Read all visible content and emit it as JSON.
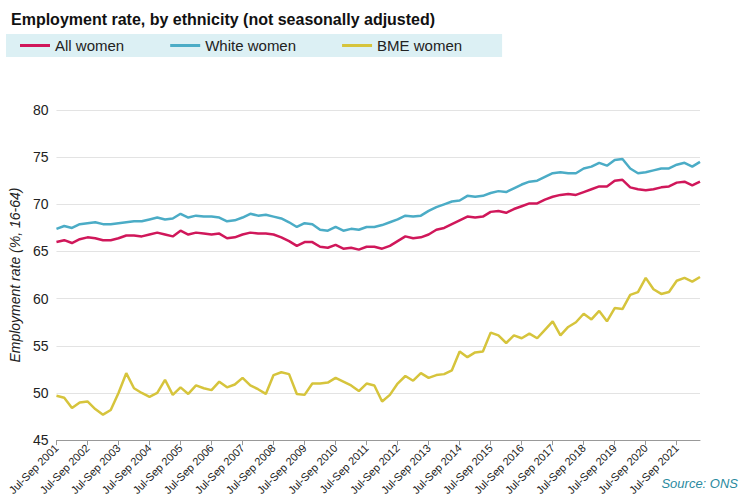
{
  "chart_data": {
    "type": "line",
    "title": "Employment rate, by ethnicity (not seasonally adjusted)",
    "y_label": "Employment rate (%, 16-64)",
    "source": "Source: ONS",
    "categories": [
      "Jul-Sep 2001",
      null,
      null,
      null,
      "Jul-Sep 2002",
      null,
      null,
      null,
      "Jul-Sep 2003",
      null,
      null,
      null,
      "Jul-Sep 2004",
      null,
      null,
      null,
      "Jul-Sep 2005",
      null,
      null,
      null,
      "Jul-Sep 2006",
      null,
      null,
      null,
      "Jul-Sep 2007",
      null,
      null,
      null,
      "Jul-Sep 2008",
      null,
      null,
      null,
      "Jul-Sep 2009",
      null,
      null,
      null,
      "Jul-Sep 2010",
      null,
      null,
      null,
      "Jul-Sep 2011",
      null,
      null,
      null,
      "Jul-Sep 2012",
      null,
      null,
      null,
      "Jul-Sep 2013",
      null,
      null,
      null,
      "Jul-Sep 2014",
      null,
      null,
      null,
      "Jul-Sep 2015",
      null,
      null,
      null,
      "Jul-Sep 2016",
      null,
      null,
      null,
      "Jul-Sep 2017",
      null,
      null,
      null,
      "Jul-Sep 2018",
      null,
      null,
      null,
      "Jul-Sep 2019",
      null,
      null,
      null,
      "Jul-Sep 2020",
      null,
      null,
      null,
      "Jul-Sep 2021",
      null,
      null,
      null
    ],
    "series": [
      {
        "name": "All women",
        "color": "#d0175a",
        "values": [
          66.0,
          66.2,
          65.9,
          66.3,
          66.5,
          66.4,
          66.2,
          66.2,
          66.4,
          66.7,
          66.7,
          66.6,
          66.8,
          67.0,
          66.8,
          66.6,
          67.2,
          66.8,
          67.0,
          66.9,
          66.8,
          66.9,
          66.4,
          66.5,
          66.8,
          67.0,
          66.9,
          66.9,
          66.8,
          66.5,
          66.1,
          65.6,
          66.0,
          66.0,
          65.5,
          65.4,
          65.7,
          65.3,
          65.4,
          65.2,
          65.5,
          65.5,
          65.3,
          65.6,
          66.1,
          66.6,
          66.4,
          66.5,
          66.8,
          67.3,
          67.5,
          67.9,
          68.3,
          68.7,
          68.6,
          68.7,
          69.2,
          69.3,
          69.1,
          69.5,
          69.8,
          70.1,
          70.1,
          70.5,
          70.8,
          71.0,
          71.1,
          71.0,
          71.3,
          71.6,
          71.9,
          71.9,
          72.5,
          72.6,
          71.8,
          71.6,
          71.5,
          71.6,
          71.8,
          71.9,
          72.3,
          72.4,
          72.0,
          72.4
        ]
      },
      {
        "name": "White women",
        "color": "#4bacc6",
        "values": [
          67.4,
          67.7,
          67.5,
          67.9,
          68.0,
          68.1,
          67.9,
          67.9,
          68.0,
          68.1,
          68.2,
          68.2,
          68.4,
          68.6,
          68.4,
          68.5,
          69.0,
          68.6,
          68.8,
          68.7,
          68.7,
          68.6,
          68.2,
          68.3,
          68.6,
          69.0,
          68.8,
          68.9,
          68.7,
          68.5,
          68.1,
          67.6,
          68.0,
          67.9,
          67.3,
          67.2,
          67.6,
          67.2,
          67.4,
          67.3,
          67.6,
          67.6,
          67.8,
          68.1,
          68.4,
          68.8,
          68.7,
          68.8,
          69.3,
          69.7,
          70.0,
          70.3,
          70.4,
          70.9,
          70.8,
          70.9,
          71.2,
          71.4,
          71.3,
          71.7,
          72.1,
          72.4,
          72.5,
          72.9,
          73.3,
          73.4,
          73.3,
          73.3,
          73.8,
          74.0,
          74.4,
          74.1,
          74.7,
          74.8,
          73.8,
          73.3,
          73.4,
          73.6,
          73.8,
          73.8,
          74.2,
          74.4,
          74.0,
          74.5
        ]
      },
      {
        "name": "BME women",
        "color": "#d6c43c",
        "values": [
          49.7,
          49.5,
          48.4,
          49.0,
          49.1,
          48.3,
          47.7,
          48.2,
          50.0,
          52.1,
          50.5,
          50.0,
          49.6,
          50.0,
          51.4,
          49.8,
          50.6,
          49.9,
          50.8,
          50.5,
          50.3,
          51.2,
          50.6,
          50.9,
          51.6,
          50.8,
          50.4,
          49.9,
          51.9,
          52.2,
          52.0,
          49.9,
          49.8,
          51.0,
          51.0,
          51.1,
          51.6,
          51.2,
          50.8,
          50.2,
          51.0,
          50.8,
          49.1,
          49.8,
          51.0,
          51.8,
          51.3,
          52.1,
          51.6,
          51.9,
          52.0,
          52.4,
          54.4,
          53.8,
          54.3,
          54.4,
          56.4,
          56.1,
          55.3,
          56.1,
          55.8,
          56.3,
          55.8,
          56.7,
          57.6,
          56.1,
          57.0,
          57.5,
          58.4,
          57.8,
          58.7,
          57.6,
          59.0,
          58.9,
          60.4,
          60.7,
          62.2,
          61.0,
          60.5,
          60.7,
          61.9,
          62.2,
          61.8,
          62.3
        ]
      }
    ],
    "ylim": [
      45,
      80
    ],
    "yticks": [
      45,
      50,
      55,
      60,
      65,
      70,
      75,
      80
    ],
    "grid": true,
    "legend": "top-left"
  }
}
